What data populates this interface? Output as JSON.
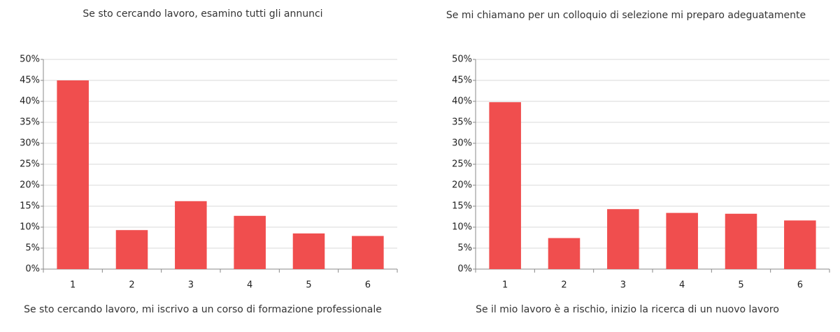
{
  "chart_data": [
    {
      "type": "bar",
      "title": "Se sto cercando lavoro, esamino tutti gli annunci",
      "categories": [
        "1",
        "2",
        "3",
        "4",
        "5",
        "6"
      ],
      "values": [
        45,
        9.3,
        16.2,
        12.7,
        8.5,
        7.9
      ],
      "color": "#f04e4e",
      "ylim": [
        0,
        50
      ],
      "yticks": [
        {
          "value": 0,
          "label": "0%"
        },
        {
          "value": 5,
          "label": "5%"
        },
        {
          "value": 10,
          "label": "10%"
        },
        {
          "value": 15,
          "label": "15%"
        },
        {
          "value": 20,
          "label": "20%"
        },
        {
          "value": 25,
          "label": "25%"
        },
        {
          "value": 30,
          "label": "30%"
        },
        {
          "value": 35,
          "label": "35%"
        },
        {
          "value": 40,
          "label": "40%"
        },
        {
          "value": 45,
          "label": "45%"
        },
        {
          "value": 50,
          "label": "50%"
        }
      ],
      "grid": true
    },
    {
      "type": "bar",
      "title": "Se mi chiamano per un colloquio di selezione mi preparo adeguatamente",
      "categories": [
        "1",
        "2",
        "3",
        "4",
        "5",
        "6"
      ],
      "values": [
        39.8,
        7.4,
        14.3,
        13.4,
        13.2,
        11.6
      ],
      "color": "#f04e4e",
      "ylim": [
        0,
        50
      ],
      "yticks": [
        {
          "value": 0,
          "label": "0%"
        },
        {
          "value": 5,
          "label": "5%"
        },
        {
          "value": 10,
          "label": "10%"
        },
        {
          "value": 15,
          "label": "15%"
        },
        {
          "value": 20,
          "label": "20%"
        },
        {
          "value": 25,
          "label": "25%"
        },
        {
          "value": 30,
          "label": "30%"
        },
        {
          "value": 35,
          "label": "35%"
        },
        {
          "value": 40,
          "label": "40%"
        },
        {
          "value": 45,
          "label": "45%"
        },
        {
          "value": 50,
          "label": "50%"
        }
      ],
      "grid": true
    },
    {
      "type": "bar",
      "title": "Se sto cercando lavoro, mi iscrivo a un corso di formazione professionale"
    },
    {
      "type": "bar",
      "title": "Se il mio lavoro è a rischio, inizio la ricerca di un nuovo lavoro"
    }
  ]
}
